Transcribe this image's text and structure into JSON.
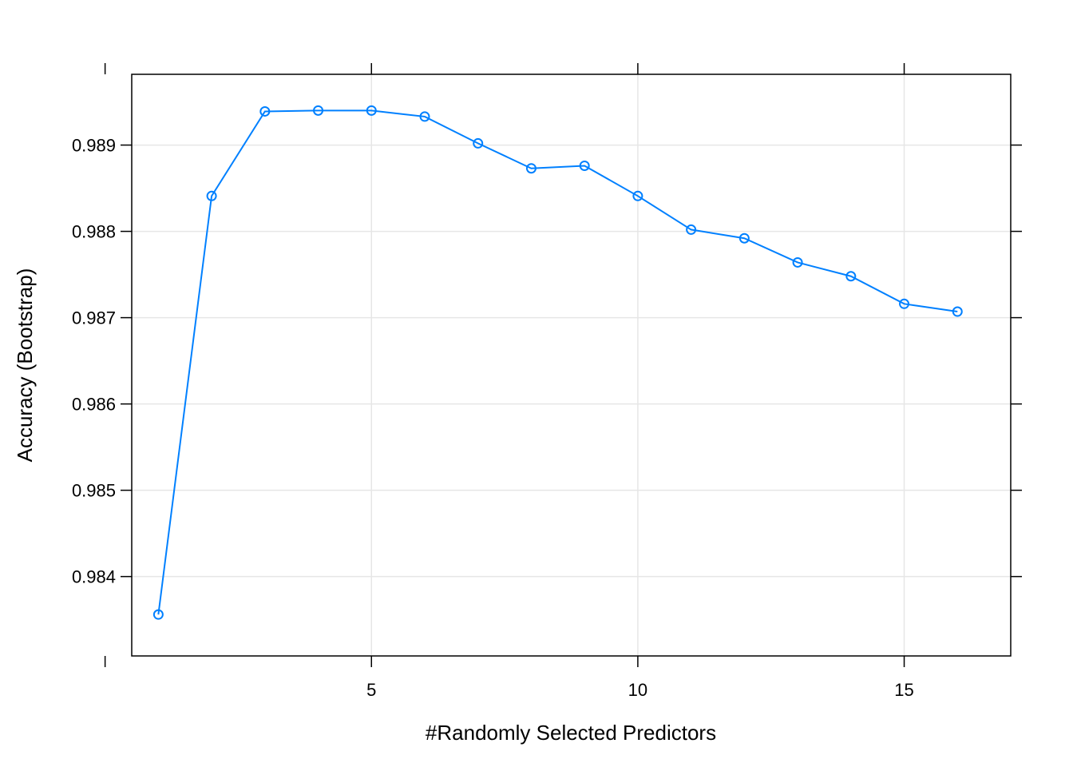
{
  "chart_data": {
    "type": "line",
    "title": "",
    "xlabel": "#Randomly Selected Predictors",
    "ylabel": "Accuracy (Bootstrap)",
    "xlim": [
      0.5,
      17.0
    ],
    "ylim": [
      0.98308,
      0.98982
    ],
    "x_ticks": [
      5,
      10,
      15
    ],
    "x_tick_labels": [
      "5",
      "10",
      "15"
    ],
    "y_ticks": [
      0.984,
      0.985,
      0.986,
      0.987,
      0.988,
      0.989
    ],
    "y_tick_labels": [
      "0.984",
      "0.985",
      "0.986",
      "0.987",
      "0.988",
      "0.989"
    ],
    "grid": true,
    "series": [
      {
        "color": "#0080ff",
        "marker": "open-circle",
        "x": [
          1,
          2,
          3,
          4,
          5,
          6,
          7,
          8,
          9,
          10,
          11,
          12,
          13,
          14,
          15,
          16
        ],
        "y": [
          0.98356,
          0.98841,
          0.98939,
          0.9894,
          0.9894,
          0.98933,
          0.98902,
          0.98873,
          0.98876,
          0.98841,
          0.98802,
          0.98792,
          0.98764,
          0.98748,
          0.98716,
          0.98707
        ]
      }
    ]
  }
}
